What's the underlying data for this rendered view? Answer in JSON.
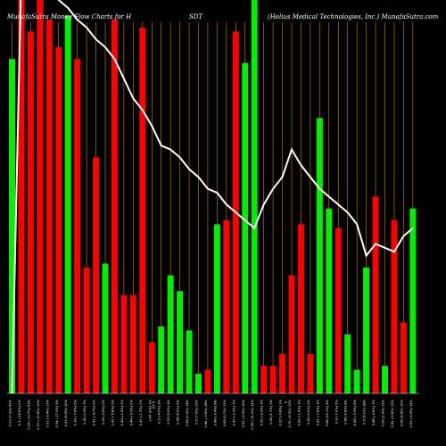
{
  "chart_data": {
    "type": "bar",
    "title_left": "MunafaSutra  Money Flow  Charts for H",
    "title_mid": "SDT",
    "title_right": "(Helius Medical Technologies, Inc.) MunafaSutra.com",
    "colors": {
      "up": "#00ee00",
      "down": "#ff0000",
      "grid": "#ff9900",
      "line": "#ffffff",
      "background": "#000000"
    },
    "ylim": [
      0,
      100
    ],
    "categories": [
      "0.23 (7.3%) 95%",
      "0.2 (-16.5%) 0%",
      "0.24 (-13.7%) 53%",
      "0.27 (-10.6%) 10%",
      "0.31 (-9.4%) 17%",
      "0.34 (-17.3%) 9%",
      "0.41 (6.5%) 10%",
      "0.39 (-7.8%) 0%",
      "0.42 (2.4%) 3%",
      "0.41 (-4.7%) 0%",
      "0.43 (3.6%) 0%",
      "0.41 (-5.8%) 0%",
      "0.44 (-1.4%) 2%",
      "0.44 (-5.3%) 0%",
      "0.47 (-1.3%) 2%",
      "0.47 (0%) 3%",
      "0.5 (-4.0%) 3%",
      "0.53 (9.0%) 4%",
      "0.48 (5.0%) 9%",
      "0.46 (0.4%) 14%",
      "0.5 (7.5%) 12%",
      "0.46 (-3.6%) 16%",
      "0.48 (-0.4%) 8%",
      "0.48 (0.7%) 11%",
      "0.47 (-2.3%) 7%",
      "0.52 (-4.9%) 10%",
      "0.55 (-11.2%) 14%",
      "0.62 (-9.9%) 3%",
      "0.69 (1.7%) 9%",
      "0.67 (-9.8%) 3%",
      "0.75 (-8.3%) 12%",
      "0.82 (-1.9%) 1%",
      "0.83 (3.0%) 2%",
      "0.81 (-7.8%) 3%",
      "0.88 (10.1%) 4%",
      "0.8 (-7.0%) 5%",
      "0.86 (0.8%) 8%",
      "0.85 (-5.9%) 8%",
      "0.9 (5.1%) 18%",
      "0.86 (-9.8%) 3%",
      "0.95 (2.9%) 15%",
      "0.92 (-5.6%) 13%",
      "0.98 (5.6%) 10%",
      "0.93 (-5.4%) 14%"
    ],
    "directions": [
      "up",
      "down",
      "down",
      "down",
      "down",
      "down",
      "up",
      "down",
      "down",
      "down",
      "up",
      "down",
      "down",
      "down",
      "down",
      "down",
      "up",
      "up",
      "up",
      "up",
      "up",
      "down",
      "up",
      "down",
      "down",
      "up",
      "up",
      "down",
      "down",
      "down",
      "down",
      "down",
      "down",
      "up",
      "up",
      "down",
      "up",
      "up",
      "up",
      "down",
      "up",
      "down",
      "down",
      "up"
    ],
    "values": [
      85,
      100,
      92,
      100,
      95,
      88,
      96,
      85,
      32,
      60,
      33,
      95,
      25,
      25,
      93,
      13,
      17,
      30,
      26,
      16,
      5,
      6,
      43,
      44,
      92,
      84,
      100,
      7,
      7,
      10,
      30,
      43,
      10,
      70,
      47,
      42,
      15,
      6,
      32,
      50,
      7,
      44,
      18,
      47
    ],
    "line": [
      0,
      108,
      107,
      104,
      102,
      100,
      98,
      95,
      93,
      90,
      88,
      85,
      80,
      75,
      72,
      68,
      63,
      62,
      60,
      57,
      55,
      52,
      51,
      48,
      46,
      44,
      42,
      48,
      52,
      55,
      62,
      58,
      55,
      52,
      50,
      48,
      46,
      43,
      35,
      38,
      37,
      36,
      40,
      42
    ],
    "annotations": [
      "0.23",
      "0"
    ]
  }
}
